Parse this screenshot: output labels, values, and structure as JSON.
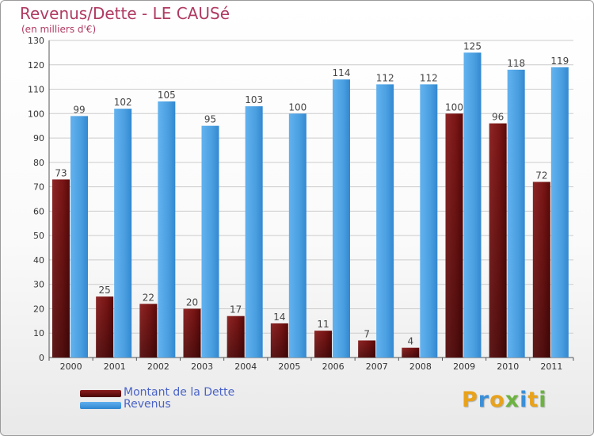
{
  "chart_data": {
    "type": "bar",
    "title": "Revenus/Dette - LE CAUSé",
    "subtitle": "(en milliers d'€)",
    "categories": [
      "2000",
      "2001",
      "2002",
      "2003",
      "2004",
      "2005",
      "2006",
      "2007",
      "2008",
      "2009",
      "2010",
      "2011"
    ],
    "series": [
      {
        "name": "Montant de la Dette",
        "color": "#7a1515",
        "values": [
          73,
          25,
          22,
          20,
          17,
          14,
          11,
          7,
          4,
          100,
          96,
          72
        ]
      },
      {
        "name": "Revenus",
        "color": "#4a9fe0",
        "values": [
          99,
          102,
          105,
          95,
          103,
          100,
          114,
          112,
          112,
          125,
          118,
          119
        ]
      }
    ],
    "ylim": [
      0,
      130
    ],
    "yticks": [
      0,
      10,
      20,
      30,
      40,
      50,
      60,
      70,
      80,
      90,
      100,
      110,
      120,
      130
    ],
    "grid": true,
    "legend_position": "bottom-left"
  },
  "logo": {
    "letters": [
      "P",
      "r",
      "o",
      "x",
      "i",
      "t",
      "i"
    ],
    "colors": [
      "#e8a21b",
      "#3b8fd6",
      "#e8a21b",
      "#6cb33f",
      "#3b8fd6",
      "#e8a21b",
      "#6cb33f"
    ]
  }
}
